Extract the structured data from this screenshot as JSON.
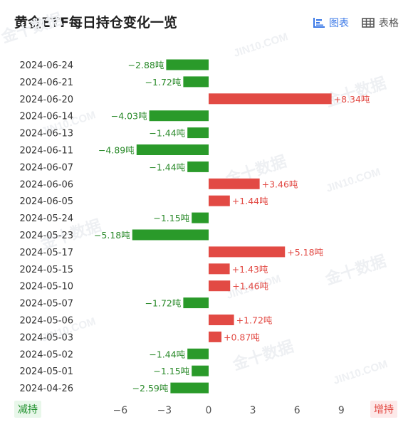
{
  "header": {
    "title": "黄金ETF每日持仓变化一览",
    "tabs": [
      {
        "label": "图表",
        "icon": "bar-chart-icon",
        "active": true
      },
      {
        "label": "表格",
        "icon": "table-icon",
        "active": false
      }
    ]
  },
  "legend": {
    "decrease": "减持",
    "increase": "增持"
  },
  "colors": {
    "increase": "#e24a44",
    "decrease": "#2a9a2a",
    "label_increase": "#e24a44",
    "label_decrease": "#2a8a2a",
    "accent": "#3a78e7"
  },
  "chart_data": {
    "type": "bar",
    "orientation": "horizontal",
    "categories": [
      "2024-06-24",
      "2024-06-21",
      "2024-06-20",
      "2024-06-14",
      "2024-06-13",
      "2024-06-11",
      "2024-06-07",
      "2024-06-06",
      "2024-06-05",
      "2024-05-24",
      "2024-05-23",
      "2024-05-17",
      "2024-05-15",
      "2024-05-10",
      "2024-05-07",
      "2024-05-06",
      "2024-05-03",
      "2024-05-02",
      "2024-05-01",
      "2024-04-26"
    ],
    "values": [
      -2.88,
      -1.72,
      8.34,
      -4.03,
      -1.44,
      -4.89,
      -1.44,
      3.46,
      1.44,
      -1.15,
      -5.18,
      5.18,
      1.43,
      1.46,
      -1.72,
      1.72,
      0.87,
      -1.44,
      -1.15,
      -2.59
    ],
    "labels": [
      "−2.88吨",
      "−1.72吨",
      "+8.34吨",
      "−4.03吨",
      "−1.44吨",
      "−4.89吨",
      "−1.44吨",
      "+3.46吨",
      "+1.44吨",
      "−1.15吨",
      "−5.18吨",
      "+5.18吨",
      "+1.43吨",
      "+1.46吨",
      "−1.72吨",
      "+1.72吨",
      "+0.87吨",
      "−1.44吨",
      "−1.15吨",
      "−2.59吨"
    ],
    "xticks": [
      -6,
      -3,
      0,
      3,
      6,
      9
    ],
    "xtick_labels": [
      "−6",
      "−3",
      "0",
      "3",
      "6",
      "9"
    ],
    "xlim": [
      -9,
      12
    ],
    "title": "",
    "xlabel": "",
    "ylabel": "",
    "grid": false,
    "watermark": "金十数据 JIN10.COM"
  }
}
